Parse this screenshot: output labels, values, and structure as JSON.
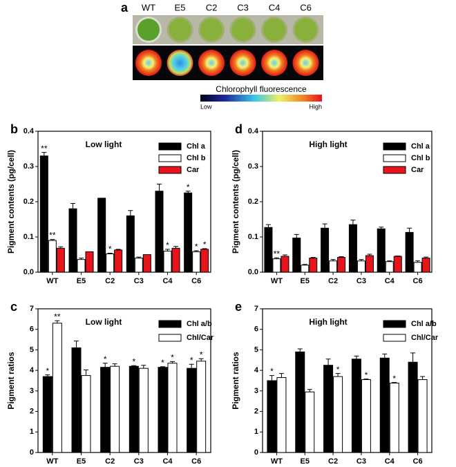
{
  "fluorescence_panel": {
    "panel_label": "a",
    "samples": [
      "WT",
      "E5",
      "C2",
      "C3",
      "C4",
      "C6"
    ],
    "colorbar_title": "Chlorophyll fluorescence",
    "colorbar_low": "Low",
    "colorbar_high": "High"
  },
  "chart_data": [
    {
      "type": "bar",
      "panel_label": "b",
      "title": "Low light",
      "ylabel": "Pigment contents (pg/cell)",
      "categories": [
        "WT",
        "E5",
        "C2",
        "C3",
        "C4",
        "C6"
      ],
      "ylim": [
        0,
        0.4
      ],
      "yticks": [
        {
          "value": 0,
          "label": "0.0"
        },
        0.1,
        0.2,
        0.3,
        0.4
      ],
      "series": [
        {
          "name": "Chl a",
          "color": "#000000",
          "values": [
            0.33,
            0.18,
            0.21,
            0.16,
            0.23,
            0.225
          ],
          "errors": [
            0.01,
            0.015,
            0,
            0.015,
            0.02,
            0.005
          ],
          "significance": [
            "**",
            null,
            null,
            null,
            null,
            "*"
          ]
        },
        {
          "name": "Chl b",
          "color": "#ffffff",
          "values": [
            0.09,
            0.036,
            0.052,
            0.04,
            0.06,
            0.058
          ],
          "errors": [
            0.003,
            0.004,
            0.002,
            0.003,
            0.005,
            0.003
          ],
          "significance": [
            "**",
            null,
            "*",
            null,
            "*",
            "*"
          ]
        },
        {
          "name": "Car",
          "color": "#e8141c",
          "values": [
            0.068,
            0.058,
            0.063,
            0.05,
            0.068,
            0.065
          ],
          "errors": [
            0.004,
            0,
            0.002,
            0,
            0.005,
            0.002
          ],
          "significance": [
            null,
            null,
            null,
            null,
            null,
            "*"
          ]
        }
      ]
    },
    {
      "type": "bar",
      "panel_label": "d",
      "title": "High light",
      "ylabel": "Pigment contents (pg/cell)",
      "categories": [
        "WT",
        "E5",
        "C2",
        "C3",
        "C4",
        "C6"
      ],
      "ylim": [
        0,
        0.4
      ],
      "yticks": [
        {
          "value": 0,
          "label": "0.0"
        },
        0.1,
        0.2,
        0.3,
        0.4
      ],
      "series": [
        {
          "name": "Chl a",
          "color": "#000000",
          "values": [
            0.127,
            0.097,
            0.125,
            0.135,
            0.123,
            0.113
          ],
          "errors": [
            0.008,
            0.01,
            0.012,
            0.013,
            0.005,
            0.012
          ],
          "significance": [
            null,
            null,
            null,
            null,
            null,
            null
          ]
        },
        {
          "name": "Chl b",
          "color": "#ffffff",
          "values": [
            0.038,
            0.02,
            0.032,
            0.032,
            0.03,
            0.028
          ],
          "errors": [
            0.003,
            0.002,
            0.004,
            0.004,
            0.002,
            0.004
          ],
          "significance": [
            "**",
            null,
            null,
            null,
            null,
            null
          ]
        },
        {
          "name": "Car",
          "color": "#e8141c",
          "values": [
            0.045,
            0.04,
            0.042,
            0.047,
            0.045,
            0.04
          ],
          "errors": [
            0.004,
            0.002,
            0.002,
            0.004,
            0.001,
            0.003
          ],
          "significance": [
            null,
            null,
            null,
            null,
            null,
            null
          ]
        }
      ]
    },
    {
      "type": "bar",
      "panel_label": "c",
      "title": "Low light",
      "ylabel": "Pigment ratios",
      "categories": [
        "WT",
        "E5",
        "C2",
        "C3",
        "C4",
        "C6"
      ],
      "ylim": [
        0,
        7
      ],
      "yticks": [
        0,
        1,
        2,
        3,
        4,
        5,
        6,
        7
      ],
      "series": [
        {
          "name": "Chl a/b",
          "color": "#000000",
          "values": [
            3.7,
            5.1,
            4.15,
            4.2,
            4.15,
            4.1
          ],
          "errors": [
            0.08,
            0.33,
            0.2,
            0.03,
            0.03,
            0.2
          ],
          "significance": [
            "*",
            null,
            "*",
            "*",
            "*",
            "*"
          ]
        },
        {
          "name": "Chl/Car",
          "color": "#ffffff",
          "values": [
            6.3,
            3.75,
            4.2,
            4.1,
            4.35,
            4.45
          ],
          "errors": [
            0.12,
            0.27,
            0.12,
            0.15,
            0.08,
            0.12
          ],
          "significance": [
            "**",
            null,
            null,
            null,
            "*",
            "*"
          ]
        }
      ]
    },
    {
      "type": "bar",
      "panel_label": "e",
      "title": "High light",
      "ylabel": "Pigment ratios",
      "categories": [
        "WT",
        "E5",
        "C2",
        "C3",
        "C4",
        "C6"
      ],
      "ylim": [
        0,
        7
      ],
      "yticks": [
        0,
        1,
        2,
        3,
        4,
        5,
        6,
        7
      ],
      "series": [
        {
          "name": "Chl a/b",
          "color": "#000000",
          "values": [
            3.5,
            4.9,
            4.25,
            4.55,
            4.6,
            4.4
          ],
          "errors": [
            0.25,
            0.15,
            0.3,
            0.15,
            0.2,
            0.45
          ],
          "significance": [
            "*",
            null,
            null,
            null,
            null,
            null
          ]
        },
        {
          "name": "Chl/Car",
          "color": "#ffffff",
          "values": [
            3.65,
            2.95,
            3.7,
            3.55,
            3.38,
            3.55
          ],
          "errors": [
            0.2,
            0.12,
            0.15,
            0.03,
            0.03,
            0.15
          ],
          "significance": [
            null,
            null,
            "*",
            "*",
            "*",
            null
          ]
        }
      ]
    }
  ]
}
